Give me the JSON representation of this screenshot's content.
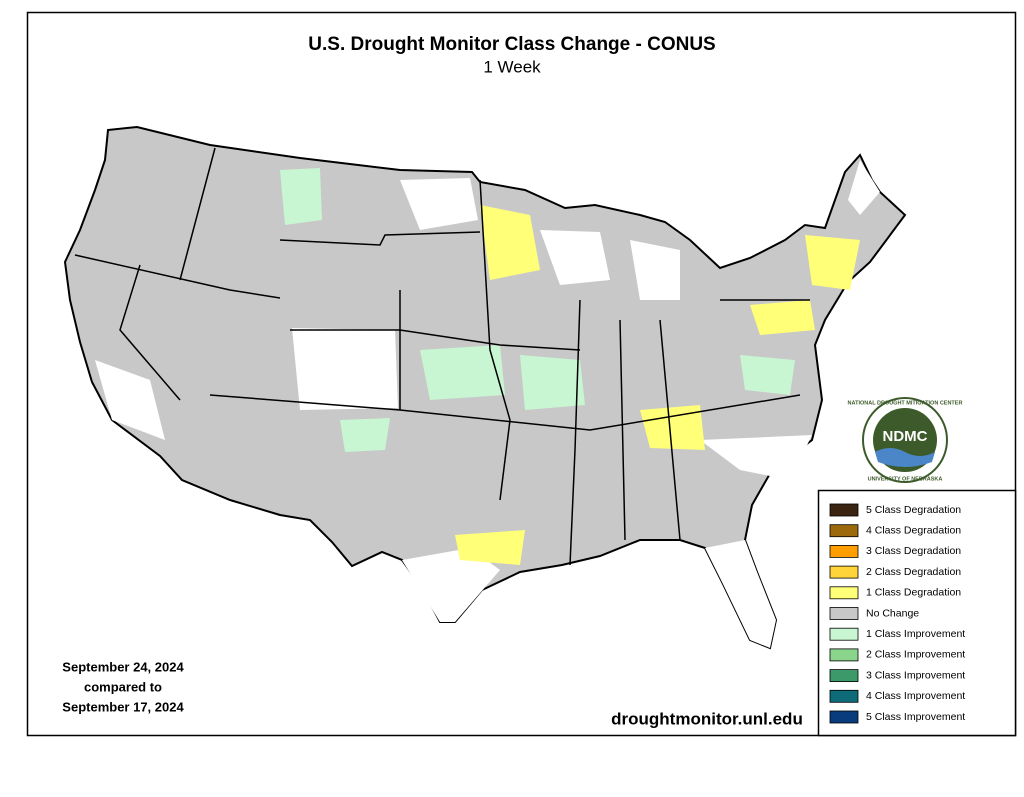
{
  "header": {
    "title": "U.S. Drought Monitor Class Change - CONUS",
    "subtitle": "1 Week"
  },
  "dates": {
    "current": "September 24, 2024",
    "connector": "compared to",
    "previous": "September 17, 2024"
  },
  "source": "droughtmonitor.unl.edu",
  "logo": {
    "acronym": "NDMC",
    "top_text": "NATIONAL DROUGHT MITIGATION CENTER",
    "bottom_text": "UNIVERSITY OF NEBRASKA"
  },
  "legend": {
    "items": [
      {
        "label": "5 Class Degradation",
        "color": "#3b2412"
      },
      {
        "label": "4 Class Degradation",
        "color": "#9c6a0c"
      },
      {
        "label": "3 Class Degradation",
        "color": "#ff9e00"
      },
      {
        "label": "2 Class Degradation",
        "color": "#ffd33a"
      },
      {
        "label": "1 Class Degradation",
        "color": "#ffff78"
      },
      {
        "label": "No Change",
        "color": "#c8c8c8"
      },
      {
        "label": "1 Class Improvement",
        "color": "#c8f5d2"
      },
      {
        "label": "2 Class Improvement",
        "color": "#8ad48c"
      },
      {
        "label": "3 Class Improvement",
        "color": "#3c9a6a"
      },
      {
        "label": "4 Class Improvement",
        "color": "#0e6c78"
      },
      {
        "label": "5 Class Improvement",
        "color": "#083c7c"
      }
    ]
  }
}
